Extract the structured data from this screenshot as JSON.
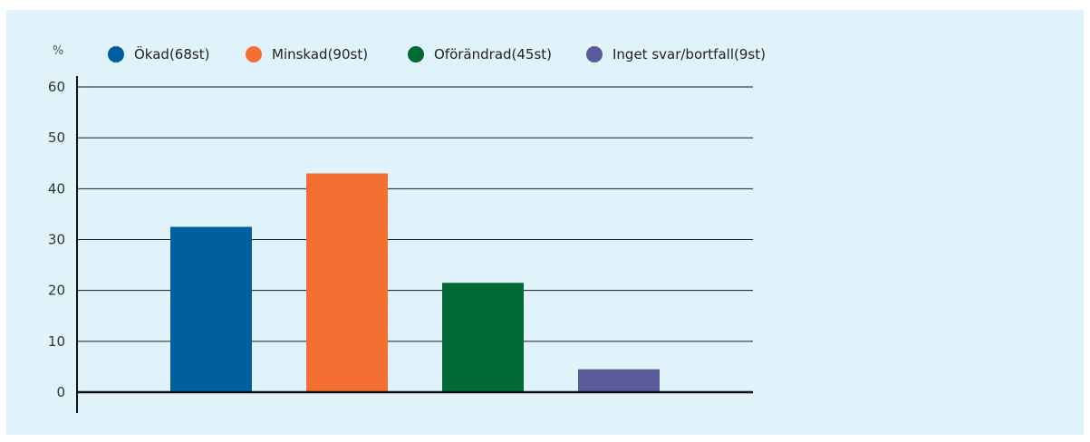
{
  "chart_data": {
    "type": "bar",
    "ylabel": "%",
    "ylim": [
      0,
      60
    ],
    "yticks": [
      0,
      10,
      20,
      30,
      40,
      50,
      60
    ],
    "grid": true,
    "legend_position": "top",
    "categories": [
      "Ökad(68st)",
      "Minskad(90st)",
      "Oförändrad(45st)",
      "Inget svar/bortfall(9st)"
    ],
    "values": [
      32.5,
      43,
      21.5,
      4.5
    ],
    "colors": [
      "#005f9e",
      "#f37032",
      "#006b35",
      "#5b5b9a"
    ]
  }
}
